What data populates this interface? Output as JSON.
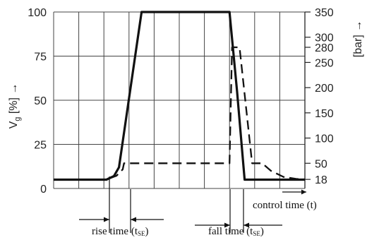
{
  "chart_data": {
    "type": "line",
    "left_axis": {
      "label": "Vg [%]",
      "label_main": "V",
      "label_sub": "g",
      "label_unit": "[%]",
      "arrow": "→",
      "range": [
        0,
        100
      ],
      "ticks": [
        "0",
        "25",
        "50",
        "75",
        "100"
      ]
    },
    "right_axis": {
      "label": "[bar]",
      "arrow": "→",
      "range": [
        0,
        350
      ],
      "ticks": [
        "18",
        "50",
        "100",
        "150",
        "200",
        "250",
        "280",
        "300",
        "350"
      ]
    },
    "x_axis": {
      "label": "control time (t)",
      "range": [
        0,
        20
      ],
      "vertical_grid": [
        0,
        2,
        4,
        6,
        8,
        10,
        12,
        14,
        16,
        18,
        20
      ]
    },
    "grid": true,
    "series": [
      {
        "style": "solid",
        "axis": "left",
        "x": [
          0,
          4.2,
          4.8,
          5.2,
          7.0,
          14.0,
          14.6,
          15.2,
          15.4,
          20
        ],
        "y": [
          5,
          5,
          7,
          12,
          100,
          100,
          55,
          5,
          5,
          5
        ]
      },
      {
        "style": "dashed",
        "axis": "right",
        "x": [
          0,
          4.2,
          5.0,
          5.5,
          5.6,
          6.9,
          14.0,
          14.2,
          14.8,
          15.8,
          16.6,
          17.3,
          18.3,
          19.3,
          20
        ],
        "y": [
          18,
          18,
          25,
          38,
          50,
          50,
          50,
          280,
          280,
          50,
          50,
          35,
          23,
          19,
          18
        ],
        "note": "dashed path steps: 50 bar plateau from rise start, 280 bar plateau, then back to 50 bar before falling to 18 bar"
      }
    ],
    "annotations": {
      "rise_time": "rise time (t",
      "rise_sub": "SE",
      "rise_close": ")",
      "fall_time": "fall time (t",
      "fall_sub": "SE",
      "fall_close": ")"
    }
  }
}
